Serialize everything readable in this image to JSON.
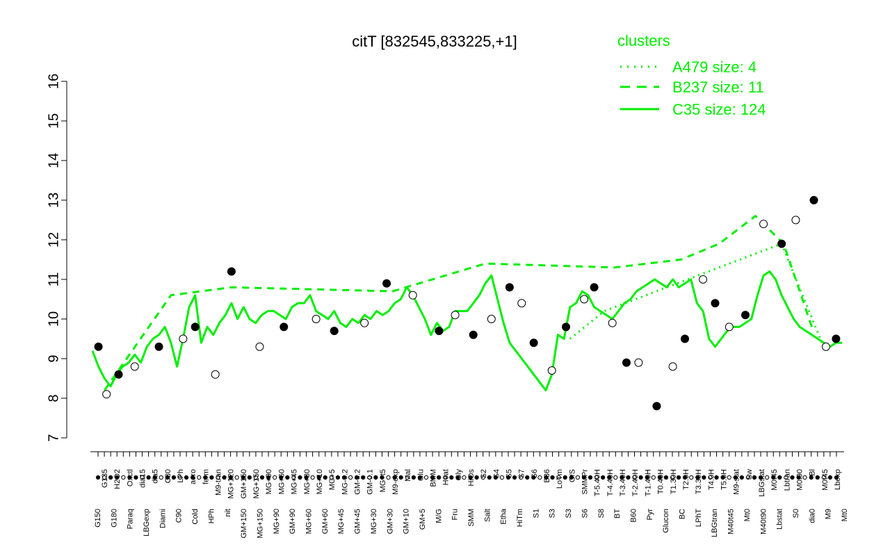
{
  "chart_data": {
    "type": "line",
    "title": "citT [832545,833225,+1]",
    "xlabel": "",
    "ylabel": "",
    "ylim": [
      7,
      16
    ],
    "yticks": [
      7,
      8,
      9,
      10,
      11,
      12,
      13,
      14,
      15,
      16
    ],
    "grid": false,
    "legend": {
      "title": "clusters",
      "placement": "top-right",
      "entries": [
        {
          "label": "A479 size: 4",
          "style": "dotted"
        },
        {
          "label": "B237 size: 11",
          "style": "dashed"
        },
        {
          "label": "C35 size: 124",
          "style": "solid"
        }
      ]
    },
    "x_labels_upper": [
      "G135",
      "H2O2",
      "Oxctl",
      "dia15",
      "dia5",
      "C30",
      "LPh",
      "aero",
      "ferm",
      "M9-tran",
      "MG+120",
      "GM+150",
      "MG+150",
      "MG+90",
      "MG+60",
      "MG+45",
      "MG+30",
      "MG+10",
      "MG+5",
      "MG-0.2",
      "GM-0.2",
      "GM-0.1",
      "MG+t5",
      "M9-exp",
      "Mal",
      "Glu",
      "BMM",
      "Heat",
      "Gly",
      "HiOs",
      "S2",
      "S4",
      "S5",
      "S7",
      "S6",
      "B36",
      "LoTm",
      "G/S",
      "SMMPr",
      "T-5.40H",
      "T-4.40H",
      "T-3.40H",
      "T-2.40H",
      "T-1.40H",
      "T0.40H",
      "T1.30H",
      "T2.0H",
      "T3.30H",
      "T4.0H",
      "T5.0H",
      "M9-stat",
      "Sw",
      "LBGstat",
      "M0t45",
      "Lbtran",
      "M0t90",
      "Bl",
      "M0t45",
      "Lbexp"
    ],
    "x_labels_lower": [
      "G150",
      "G180",
      "Paraq",
      "LBGexp",
      "Diami",
      "C90",
      "Cold",
      "HPh",
      "nit",
      "GM+150",
      "MG+150",
      "MG+90",
      "GM+90",
      "MG+60",
      "GM+60",
      "MG+45",
      "GM+45",
      "MG+30",
      "GM+30",
      "GM+10",
      "GM+5",
      "M/G",
      "Fru",
      "SMM",
      "Salt",
      "Etha",
      "HiTm",
      "S1",
      "S3",
      "S3",
      "S6",
      "S8",
      "BT",
      "B60",
      "Pyr",
      "Glucon",
      "BC",
      "LPhT",
      "LBGtran",
      "M40t45",
      "Mt0",
      "M40t90",
      "Lbstat",
      "S0",
      "dia0",
      "M9",
      "Mt0"
    ],
    "series": [
      {
        "name": "C35 size: 124",
        "style": "solid",
        "color": "#00ee00",
        "x": [
          1,
          4,
          7,
          10,
          13,
          16,
          19,
          22,
          25,
          28,
          31,
          34,
          37,
          40,
          43,
          46,
          49,
          52,
          55,
          58,
          61,
          64,
          67,
          70,
          73,
          76,
          79,
          82,
          85,
          88,
          91,
          94,
          97,
          100,
          103,
          106,
          109,
          112,
          115,
          118,
          121,
          124,
          127,
          130,
          133,
          136,
          139,
          142,
          145,
          148,
          151,
          154,
          157,
          160,
          163,
          166,
          169,
          172,
          175,
          178,
          181,
          184,
          187,
          190,
          193,
          196,
          199,
          202,
          205,
          208,
          211,
          214,
          217,
          220,
          223,
          226,
          229,
          232,
          235,
          238,
          241,
          244,
          247,
          250,
          253,
          256,
          259,
          262,
          265,
          268,
          271,
          274,
          277,
          280,
          283,
          286,
          289,
          292,
          295,
          298,
          301,
          304,
          307,
          310,
          313,
          316,
          319,
          322,
          325,
          328,
          331,
          334,
          337,
          340,
          343,
          346,
          349,
          352,
          355,
          358,
          361,
          364,
          367,
          370,
          373
        ],
        "y": [
          9.2,
          8.8,
          8.5,
          8.3,
          8.6,
          8.8,
          8.9,
          9.1,
          8.9,
          9.3,
          9.5,
          9.6,
          9.8,
          9.4,
          8.8,
          9.5,
          10.3,
          10.6,
          9.4,
          9.8,
          9.6,
          9.9,
          10.1,
          10.4,
          10.0,
          10.3,
          10.0,
          9.9,
          10.1,
          10.2,
          10.2,
          10.1,
          10.0,
          10.3,
          10.4,
          10.4,
          10.6,
          10.2,
          10.1,
          10.0,
          10.2,
          9.9,
          9.8,
          10.0,
          9.9,
          10.1,
          10.0,
          10.2,
          10.1,
          10.2,
          10.4,
          10.5,
          10.8,
          10.6,
          10.3,
          10.0,
          9.6,
          9.9,
          9.7,
          9.8,
          10.2,
          10.2,
          10.2,
          10.4,
          10.6,
          10.9,
          11.1,
          10.5,
          9.9,
          9.4,
          9.2,
          9.0,
          8.8,
          8.6,
          8.4,
          8.2,
          8.6,
          9.6,
          9.5,
          10.3,
          10.4,
          10.7,
          10.6,
          10.3,
          10.2,
          10.1,
          10.0,
          10.2,
          10.4,
          10.5,
          10.7,
          10.8,
          10.9,
          11.0,
          10.9,
          10.8,
          11.0,
          10.8,
          10.9,
          11.0,
          10.4,
          10.2,
          9.5,
          9.3,
          9.5,
          9.7,
          9.8,
          9.8,
          9.9,
          10.0,
          10.6,
          11.1,
          11.2,
          11.0,
          10.6,
          10.3,
          10.0,
          9.8,
          9.7,
          9.6,
          9.5,
          9.4,
          9.3,
          9.4,
          9.4
        ]
      },
      {
        "name": "B237 size: 11",
        "style": "dashed",
        "color": "#00ee00",
        "x": [
          7,
          40,
          70,
          150,
          196,
          260,
          293,
          312,
          330,
          344,
          358
        ],
        "y": [
          8.2,
          10.6,
          10.8,
          10.7,
          11.4,
          11.3,
          11.5,
          11.9,
          12.6,
          11.9,
          9.8
        ]
      },
      {
        "name": "A479 size: 4",
        "style": "dotted",
        "color": "#00ee00",
        "x": [
          238,
          255,
          343,
          363
        ],
        "y": [
          9.5,
          10.2,
          11.9,
          9.4
        ]
      }
    ],
    "points": {
      "x": [
        4,
        8,
        14,
        22,
        34,
        46,
        52,
        62,
        70,
        84,
        96,
        112,
        121,
        136,
        147,
        160,
        173,
        181,
        190,
        199,
        208,
        214,
        220,
        229,
        236,
        245,
        250,
        259,
        266,
        272,
        281,
        289,
        295,
        304,
        310,
        317,
        325,
        334,
        343,
        350,
        359,
        365,
        370
      ],
      "y": [
        9.3,
        8.1,
        8.6,
        8.8,
        9.3,
        9.5,
        9.8,
        8.6,
        11.2,
        9.3,
        9.8,
        10.0,
        9.7,
        9.9,
        10.9,
        10.6,
        9.7,
        10.1,
        9.6,
        10.0,
        10.8,
        10.4,
        9.4,
        8.7,
        9.8,
        10.5,
        10.8,
        9.9,
        8.9,
        8.9,
        7.8,
        8.8,
        9.5,
        11.0,
        10.4,
        9.8,
        10.1,
        12.4,
        11.9,
        12.5,
        13.0,
        9.3,
        9.5
      ]
    }
  }
}
